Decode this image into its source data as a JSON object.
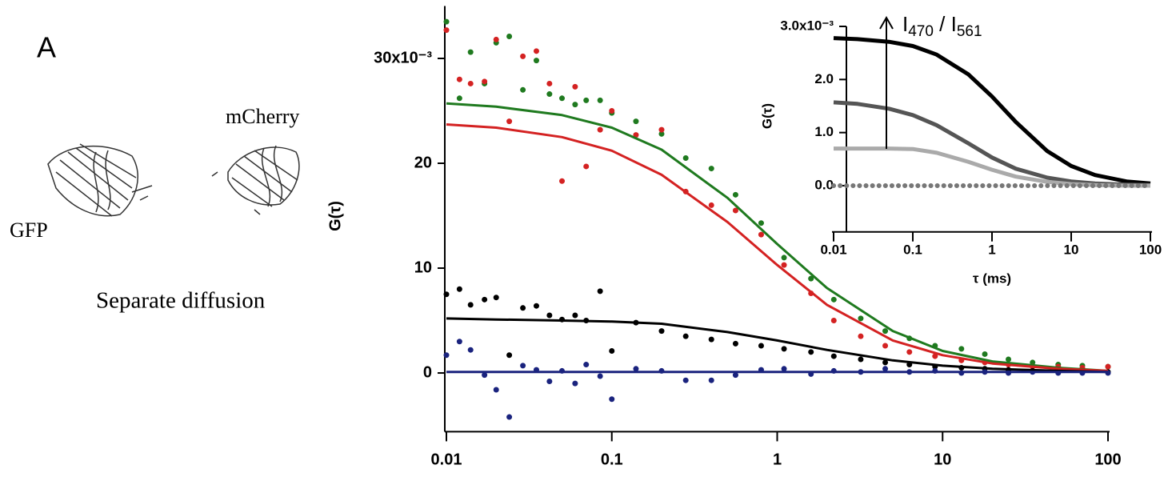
{
  "panel_label": "A",
  "labels": {
    "gfp": "GFP",
    "mcherry": "mCherry",
    "caption": "Separate diffusion"
  },
  "chart_data": [
    {
      "type": "scatter",
      "ylabel": "G(τ)",
      "xscale": "log",
      "grid": false,
      "xlim": [
        0.01,
        100
      ],
      "xticks": [
        0.01,
        0.1,
        1,
        10,
        100
      ],
      "ylim": [
        -5.6,
        35
      ],
      "yticks": [
        0,
        10,
        20,
        {
          "value": 30,
          "label": "30x10⁻³"
        }
      ],
      "series": [
        {
          "style": "markers",
          "color": "#1f7a1f",
          "x": [
            0.01,
            0.012,
            0.014,
            0.017,
            0.02,
            0.024,
            0.029,
            0.035,
            0.042,
            0.05,
            0.06,
            0.07,
            0.085,
            0.1,
            0.14,
            0.2,
            0.28,
            0.4,
            0.56,
            0.8,
            1.1,
            1.6,
            2.2,
            3.2,
            4.5,
            6.3,
            9,
            13,
            18,
            25,
            35,
            50,
            70,
            100
          ],
          "values": [
            33.5,
            26.2,
            30.6,
            27.6,
            31.5,
            32.1,
            27.0,
            29.8,
            26.6,
            26.2,
            25.6,
            26.0,
            26.0,
            24.8,
            24.0,
            22.8,
            20.5,
            19.5,
            17.0,
            14.3,
            11.0,
            9.0,
            7.0,
            5.2,
            4.0,
            3.3,
            2.6,
            2.3,
            1.8,
            1.3,
            1.0,
            0.8,
            0.7,
            0.6
          ]
        },
        {
          "style": "markers",
          "color": "#d42222",
          "x": [
            0.01,
            0.012,
            0.014,
            0.017,
            0.02,
            0.024,
            0.029,
            0.035,
            0.042,
            0.05,
            0.06,
            0.07,
            0.085,
            0.1,
            0.14,
            0.2,
            0.28,
            0.4,
            0.56,
            0.8,
            1.1,
            1.6,
            2.2,
            3.2,
            4.5,
            6.3,
            9,
            13,
            18,
            25,
            35,
            50,
            70,
            100
          ],
          "values": [
            32.7,
            28.0,
            27.6,
            27.8,
            31.8,
            24.0,
            30.2,
            30.7,
            27.6,
            18.3,
            27.3,
            19.7,
            23.2,
            25.0,
            22.7,
            23.2,
            17.3,
            16.0,
            15.5,
            13.2,
            10.3,
            7.6,
            5.0,
            3.5,
            2.6,
            2.0,
            1.6,
            1.2,
            1.0,
            0.8,
            0.6,
            0.6,
            0.5,
            0.6
          ]
        },
        {
          "style": "markers",
          "color": "#000000",
          "x": [
            0.01,
            0.012,
            0.014,
            0.017,
            0.02,
            0.024,
            0.029,
            0.035,
            0.042,
            0.05,
            0.06,
            0.07,
            0.085,
            0.1,
            0.14,
            0.2,
            0.28,
            0.4,
            0.56,
            0.8,
            1.1,
            1.6,
            2.2,
            3.2,
            4.5,
            6.3,
            9,
            13,
            18,
            25,
            35,
            50,
            70,
            100
          ],
          "values": [
            7.5,
            8.0,
            6.5,
            7.0,
            7.2,
            1.7,
            6.2,
            6.4,
            5.5,
            5.1,
            5.5,
            5.0,
            7.8,
            2.1,
            4.8,
            4.0,
            3.5,
            3.2,
            2.8,
            2.6,
            2.3,
            2.0,
            1.6,
            1.3,
            1.0,
            0.8,
            0.6,
            0.5,
            0.4,
            0.3,
            0.2,
            0.2,
            0.1,
            0.1
          ]
        },
        {
          "style": "markers",
          "color": "#1a237e",
          "x": [
            0.01,
            0.012,
            0.014,
            0.017,
            0.02,
            0.024,
            0.029,
            0.035,
            0.042,
            0.05,
            0.06,
            0.07,
            0.085,
            0.1,
            0.14,
            0.2,
            0.28,
            0.4,
            0.56,
            0.8,
            1.1,
            1.6,
            2.2,
            3.2,
            4.5,
            6.3,
            9,
            13,
            18,
            25,
            35,
            50,
            70,
            100
          ],
          "values": [
            1.7,
            3.0,
            2.2,
            -0.2,
            -1.6,
            -4.2,
            0.7,
            0.3,
            -0.8,
            0.2,
            -1.0,
            0.8,
            -0.3,
            -2.5,
            0.4,
            0.2,
            -0.7,
            -0.7,
            -0.2,
            0.3,
            0.4,
            -0.1,
            0.2,
            0.1,
            0.4,
            0.1,
            0.2,
            0.0,
            0.1,
            0.0,
            0.1,
            0.0,
            0.0,
            0.0
          ]
        },
        {
          "style": "line",
          "color": "#1f7a1f",
          "x": [
            0.01,
            0.02,
            0.05,
            0.1,
            0.2,
            0.5,
            1,
            2,
            5,
            10,
            20,
            50,
            100
          ],
          "values": [
            25.7,
            25.4,
            24.6,
            23.4,
            21.3,
            16.7,
            12.3,
            8.1,
            4.0,
            2.1,
            1.1,
            0.5,
            0.2
          ]
        },
        {
          "style": "line",
          "color": "#d42222",
          "x": [
            0.01,
            0.02,
            0.05,
            0.1,
            0.2,
            0.5,
            1,
            2,
            5,
            10,
            20,
            50,
            100
          ],
          "values": [
            23.7,
            23.4,
            22.5,
            21.2,
            18.9,
            14.4,
            10.3,
            6.5,
            3.1,
            1.7,
            0.9,
            0.4,
            0.2
          ]
        },
        {
          "style": "line",
          "color": "#000000",
          "x": [
            0.01,
            0.02,
            0.05,
            0.1,
            0.2,
            0.5,
            1,
            2,
            5,
            10,
            20,
            50,
            100
          ],
          "values": [
            5.2,
            5.1,
            5.0,
            4.9,
            4.7,
            3.9,
            3.1,
            2.2,
            1.2,
            0.7,
            0.4,
            0.2,
            0.1
          ]
        },
        {
          "style": "line",
          "color": "#1a237e",
          "x": [
            0.01,
            0.02,
            0.05,
            0.1,
            0.2,
            0.5,
            1,
            2,
            5,
            10,
            20,
            50,
            100
          ],
          "values": [
            0.1,
            0.1,
            0.1,
            0.1,
            0.1,
            0.1,
            0.1,
            0.1,
            0.1,
            0.1,
            0.1,
            0.1,
            0.1
          ]
        }
      ]
    },
    {
      "type": "line",
      "ylabel": "G(τ)",
      "xlabel": "τ (ms)",
      "xscale": "log",
      "grid": false,
      "xlim": [
        0.01,
        100
      ],
      "xticks": [
        0.01,
        0.1,
        1,
        10,
        100
      ],
      "ylim": [
        -0.87,
        3.0
      ],
      "yticks": [
        {
          "value": 0,
          "label": "0.0"
        },
        {
          "value": 1,
          "label": "1.0"
        },
        {
          "value": 2,
          "label": "2.0"
        },
        {
          "value": 3,
          "label": "3.0x10⁻³"
        }
      ],
      "annotation": [
        "I",
        "470",
        " / I",
        "561"
      ],
      "series": [
        {
          "style": "line",
          "color": "#000000",
          "x": [
            0.01,
            0.02,
            0.05,
            0.1,
            0.2,
            0.5,
            1,
            2,
            5,
            10,
            20,
            50,
            100
          ],
          "values": [
            2.78,
            2.76,
            2.71,
            2.63,
            2.47,
            2.1,
            1.68,
            1.2,
            0.65,
            0.37,
            0.2,
            0.08,
            0.04
          ]
        },
        {
          "style": "line",
          "color": "#555555",
          "x": [
            0.01,
            0.02,
            0.05,
            0.1,
            0.2,
            0.5,
            1,
            2,
            5,
            10,
            20,
            50,
            100
          ],
          "values": [
            1.57,
            1.54,
            1.45,
            1.33,
            1.14,
            0.8,
            0.53,
            0.32,
            0.15,
            0.08,
            0.04,
            0.02,
            0.01
          ]
        },
        {
          "style": "line",
          "color": "#aaaaaa",
          "x": [
            0.01,
            0.02,
            0.05,
            0.1,
            0.2,
            0.5,
            1,
            2,
            5,
            10,
            20,
            50,
            100
          ],
          "values": [
            0.7,
            0.7,
            0.7,
            0.69,
            0.62,
            0.45,
            0.3,
            0.17,
            0.07,
            0.03,
            0.01,
            0,
            0
          ]
        },
        {
          "style": "dotted",
          "color": "#777777",
          "x": [
            0.01,
            0.02,
            0.05,
            0.1,
            0.2,
            0.5,
            1,
            2,
            5,
            10,
            20,
            50,
            100
          ],
          "values": [
            0,
            0,
            0,
            0,
            0,
            0,
            0,
            0,
            0,
            0,
            0,
            0,
            0
          ]
        }
      ]
    }
  ]
}
